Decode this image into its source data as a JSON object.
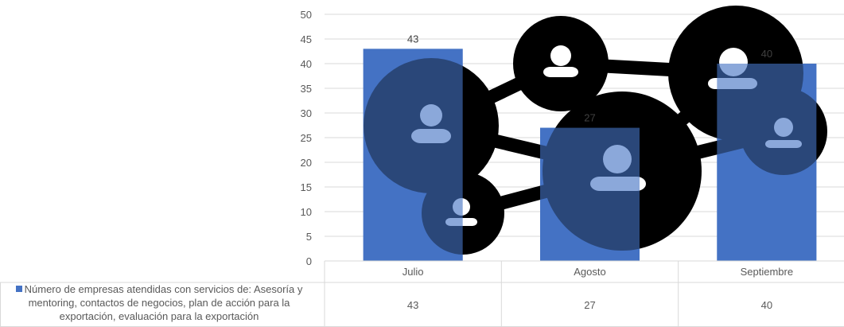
{
  "chart_data": {
    "type": "bar",
    "categories": [
      "Julio",
      "Agosto",
      "Septiembre"
    ],
    "series": [
      {
        "name": "Número de empresas atendidas con servicios de: Asesoría y mentoring, contactos de negocios, plan de acción para la exportación, evaluación para la exportación",
        "values": [
          43,
          27,
          40
        ]
      }
    ],
    "ylim": [
      0,
      50
    ],
    "yticks": [
      0,
      5,
      10,
      15,
      20,
      25,
      30,
      35,
      40,
      45,
      50
    ],
    "grid": true,
    "data_table": true,
    "legend": "data-table",
    "bar_color": "#4472C4"
  },
  "background_graphic": "network-people-icon"
}
